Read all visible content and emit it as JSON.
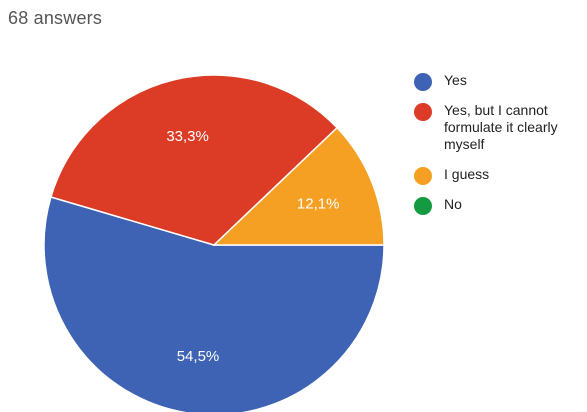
{
  "summary": {
    "answers_text": "68 answers"
  },
  "chart_data": {
    "type": "pie",
    "slices": [
      {
        "label": "Yes",
        "value": 54.5,
        "value_label": "54,5%",
        "color": "#3e63b5"
      },
      {
        "label": "Yes, but I cannot formulate it clearly myself",
        "value": 33.3,
        "value_label": "33,3%",
        "color": "#dc3b25"
      },
      {
        "label": "I guess",
        "value": 12.1,
        "value_label": "12,1%",
        "color": "#f5a022"
      },
      {
        "label": "No",
        "value": 0,
        "value_label": "",
        "color": "#149a40"
      }
    ],
    "legend_position": "right",
    "legend": [
      {
        "lines": [
          "Yes"
        ],
        "color": "#3e63b5"
      },
      {
        "lines": [
          "Yes, but I cannot",
          "formulate it clearly",
          "myself"
        ],
        "color": "#dc3b25"
      },
      {
        "lines": [
          "I guess"
        ],
        "color": "#f5a022"
      },
      {
        "lines": [
          "No"
        ],
        "color": "#149a40"
      }
    ]
  }
}
